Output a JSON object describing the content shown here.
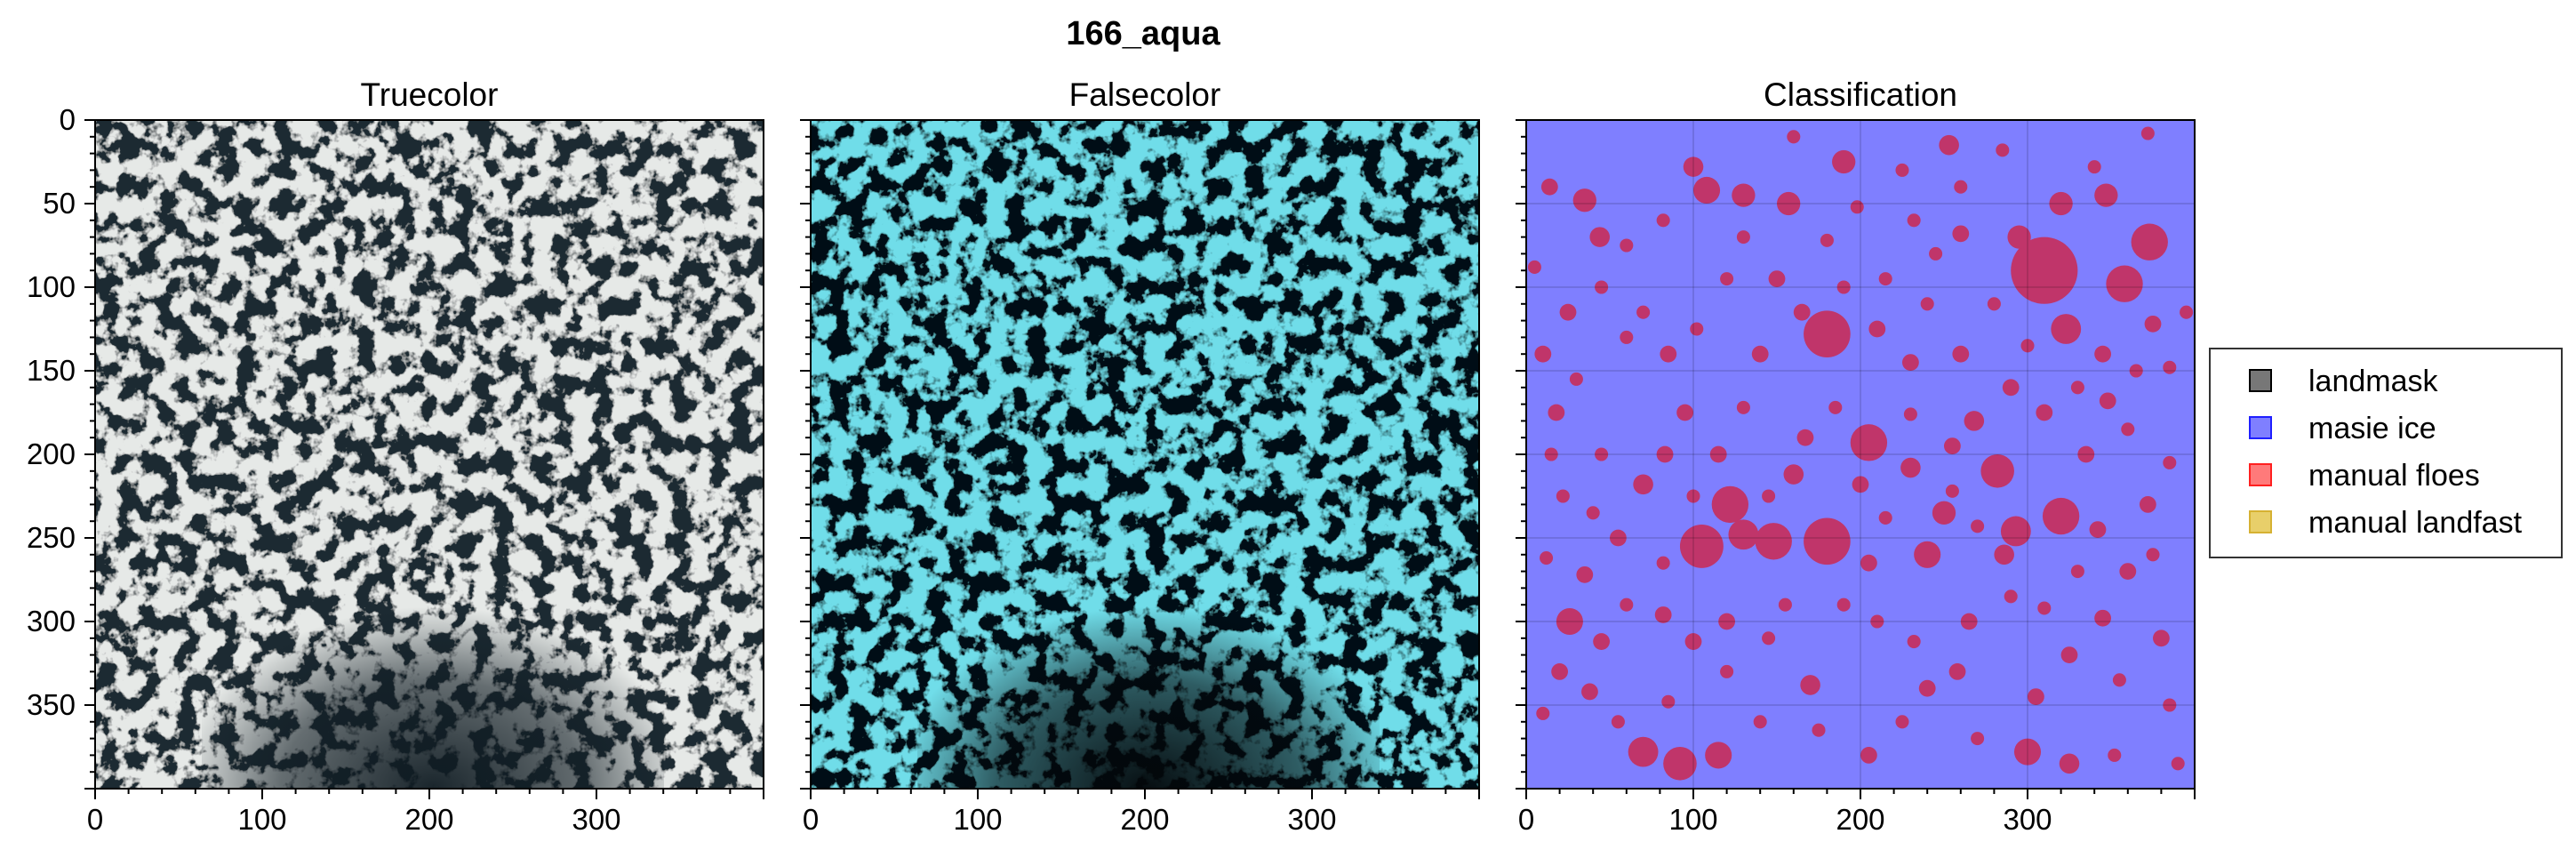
{
  "figure_title": "166_aqua",
  "colors": {
    "truecolor_ice": "#c9cdcb",
    "truecolor_water": "#1b2b33",
    "falsecolor_ice": "#28b7cf",
    "falsecolor_water": "#050d12",
    "masie": "#7f7fff",
    "floe": "#c0356a",
    "landmask": "#777777",
    "landfast": "#e8cf6a"
  },
  "chart_data": [
    {
      "type": "image",
      "title": "Truecolor",
      "xlim": [
        0,
        400
      ],
      "ylim": [
        400,
        0
      ],
      "xticks": [
        "0",
        "100",
        "200",
        "300"
      ],
      "yticks": [
        "0",
        "50",
        "100",
        "150",
        "200",
        "250",
        "300",
        "350"
      ]
    },
    {
      "type": "image",
      "title": "Falsecolor",
      "xlim": [
        0,
        400
      ],
      "ylim": [
        400,
        0
      ],
      "xticks": [
        "0",
        "100",
        "200",
        "300"
      ],
      "yticks": []
    },
    {
      "type": "image",
      "title": "Classification",
      "xlim": [
        0,
        400
      ],
      "ylim": [
        400,
        0
      ],
      "xticks": [
        "0",
        "100",
        "200",
        "300"
      ],
      "yticks": [],
      "background_class": "masie ice",
      "floes": [
        [
          310,
          90,
          20
        ],
        [
          323,
          125,
          9
        ],
        [
          180,
          128,
          14
        ],
        [
          105,
          255,
          13
        ],
        [
          180,
          252,
          14
        ],
        [
          148,
          252,
          11
        ],
        [
          122,
          230,
          11
        ],
        [
          130,
          248,
          9
        ],
        [
          205,
          193,
          11
        ],
        [
          282,
          210,
          10
        ],
        [
          100,
          28,
          6
        ],
        [
          108,
          42,
          8
        ],
        [
          130,
          45,
          7
        ],
        [
          157,
          50,
          7
        ],
        [
          190,
          25,
          7
        ],
        [
          253,
          15,
          6
        ],
        [
          295,
          70,
          7
        ],
        [
          320,
          50,
          7
        ],
        [
          347,
          45,
          7
        ],
        [
          373,
          73,
          11
        ],
        [
          358,
          98,
          11
        ],
        [
          35,
          48,
          7
        ],
        [
          14,
          40,
          5
        ],
        [
          44,
          70,
          6
        ],
        [
          25,
          115,
          5
        ],
        [
          293,
          246,
          9
        ],
        [
          320,
          237,
          11
        ],
        [
          286,
          260,
          6
        ],
        [
          240,
          260,
          8
        ],
        [
          250,
          235,
          7
        ],
        [
          230,
          208,
          6
        ],
        [
          115,
          200,
          5
        ],
        [
          160,
          212,
          6
        ],
        [
          167,
          190,
          5
        ],
        [
          200,
          218,
          5
        ],
        [
          70,
          218,
          6
        ],
        [
          55,
          250,
          5
        ],
        [
          35,
          272,
          5
        ],
        [
          26,
          300,
          8
        ],
        [
          45,
          312,
          5
        ],
        [
          82,
          296,
          5
        ],
        [
          100,
          312,
          5
        ],
        [
          20,
          330,
          5
        ],
        [
          38,
          342,
          5
        ],
        [
          70,
          378,
          9
        ],
        [
          92,
          385,
          10
        ],
        [
          115,
          380,
          8
        ],
        [
          300,
          378,
          8
        ],
        [
          325,
          385,
          6
        ],
        [
          205,
          380,
          5
        ],
        [
          170,
          338,
          6
        ],
        [
          240,
          340,
          5
        ],
        [
          258,
          330,
          5
        ],
        [
          305,
          345,
          5
        ],
        [
          325,
          320,
          5
        ],
        [
          345,
          298,
          5
        ],
        [
          380,
          310,
          5
        ],
        [
          372,
          230,
          5
        ],
        [
          342,
          245,
          5
        ],
        [
          360,
          270,
          5
        ],
        [
          230,
          145,
          5
        ],
        [
          260,
          140,
          5
        ],
        [
          268,
          180,
          6
        ],
        [
          255,
          195,
          5
        ],
        [
          290,
          160,
          5
        ],
        [
          335,
          200,
          5
        ],
        [
          310,
          175,
          5
        ],
        [
          348,
          168,
          5
        ],
        [
          375,
          122,
          5
        ],
        [
          395,
          115,
          4
        ],
        [
          85,
          140,
          5
        ],
        [
          60,
          130,
          4
        ],
        [
          10,
          140,
          5
        ],
        [
          18,
          175,
          5
        ],
        [
          5,
          88,
          4
        ],
        [
          140,
          140,
          5
        ],
        [
          165,
          115,
          5
        ],
        [
          210,
          125,
          5
        ],
        [
          215,
          95,
          4
        ],
        [
          150,
          95,
          5
        ],
        [
          120,
          95,
          4
        ],
        [
          95,
          175,
          5
        ],
        [
          83,
          200,
          5
        ],
        [
          130,
          172,
          4
        ],
        [
          185,
          172,
          4
        ],
        [
          230,
          176,
          4
        ],
        [
          215,
          238,
          4
        ],
        [
          205,
          265,
          5
        ],
        [
          265,
          300,
          5
        ],
        [
          232,
          312,
          4
        ],
        [
          145,
          310,
          4
        ],
        [
          120,
          330,
          4
        ],
        [
          85,
          348,
          4
        ],
        [
          55,
          360,
          4
        ],
        [
          10,
          355,
          4
        ],
        [
          140,
          360,
          4
        ],
        [
          175,
          365,
          4
        ],
        [
          225,
          360,
          4
        ],
        [
          270,
          370,
          4
        ],
        [
          352,
          380,
          4
        ],
        [
          390,
          385,
          4
        ],
        [
          260,
          68,
          5
        ],
        [
          280,
          110,
          4
        ],
        [
          245,
          80,
          4
        ],
        [
          232,
          60,
          4
        ],
        [
          345,
          140,
          5
        ],
        [
          365,
          150,
          4
        ],
        [
          385,
          148,
          4
        ],
        [
          360,
          185,
          4
        ],
        [
          255,
          222,
          4
        ],
        [
          270,
          243,
          4
        ],
        [
          120,
          300,
          5
        ],
        [
          155,
          290,
          4
        ],
        [
          190,
          290,
          4
        ],
        [
          210,
          300,
          4
        ],
        [
          60,
          290,
          4
        ],
        [
          12,
          262,
          4
        ],
        [
          22,
          225,
          4
        ],
        [
          45,
          200,
          4
        ],
        [
          130,
          70,
          4
        ],
        [
          60,
          75,
          4
        ],
        [
          82,
          60,
          4
        ],
        [
          102,
          125,
          4
        ],
        [
          180,
          72,
          4
        ],
        [
          198,
          52,
          4
        ],
        [
          225,
          30,
          4
        ],
        [
          340,
          28,
          4
        ],
        [
          372,
          8,
          4
        ],
        [
          260,
          40,
          4
        ],
        [
          160,
          10,
          4
        ],
        [
          285,
          18,
          4
        ],
        [
          300,
          135,
          4
        ],
        [
          330,
          160,
          4
        ],
        [
          240,
          110,
          4
        ],
        [
          190,
          100,
          4
        ],
        [
          45,
          100,
          4
        ],
        [
          70,
          115,
          4
        ],
        [
          30,
          155,
          4
        ],
        [
          145,
          225,
          4
        ],
        [
          100,
          225,
          4
        ],
        [
          40,
          235,
          4
        ],
        [
          82,
          265,
          4
        ],
        [
          290,
          285,
          4
        ],
        [
          310,
          292,
          4
        ],
        [
          330,
          270,
          4
        ],
        [
          375,
          260,
          4
        ],
        [
          385,
          205,
          4
        ],
        [
          15,
          200,
          4
        ],
        [
          385,
          350,
          4
        ],
        [
          355,
          335,
          4
        ]
      ]
    }
  ],
  "legend": {
    "entries": [
      {
        "label": "landmask",
        "color": "#777777",
        "edge": "#000000"
      },
      {
        "label": "masie ice",
        "color": "#7f7fff",
        "edge": "#1f1fff"
      },
      {
        "label": "manual floes",
        "color": "#ff7a7a",
        "edge": "#ff2020"
      },
      {
        "label": "manual landfast",
        "color": "#e8cf6a",
        "edge": "#d6b132"
      }
    ]
  }
}
